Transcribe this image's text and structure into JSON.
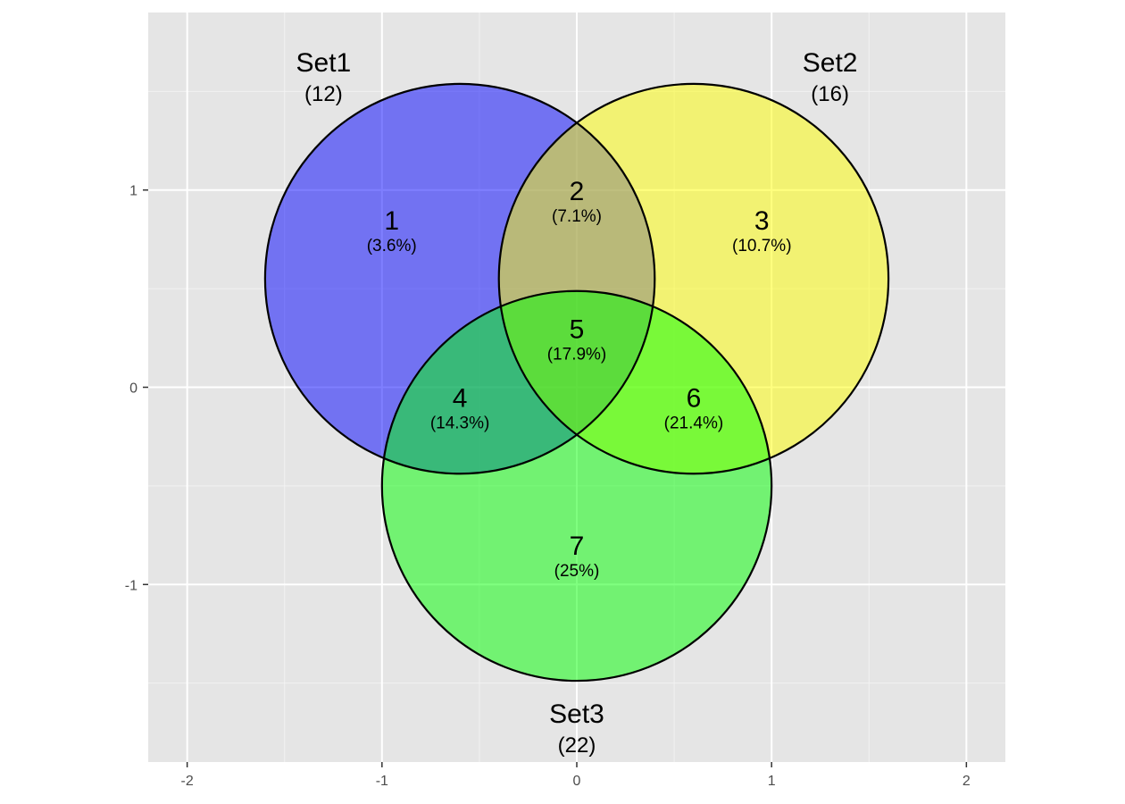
{
  "chart_data": {
    "type": "venn",
    "xlim": [
      -2.2,
      2.2
    ],
    "ylim": [
      -1.9,
      1.9
    ],
    "x_ticks": [
      -2,
      -1,
      0,
      1,
      2
    ],
    "y_ticks": [
      -1,
      0,
      1
    ],
    "grid": true,
    "panel_background": "#e5e5e5",
    "sets": [
      {
        "name": "Set1",
        "count": "(12)",
        "center": [
          -0.6,
          0.55
        ],
        "radius": 1.0,
        "color": "#0000ff",
        "label_pos": [
          -1.3,
          1.6
        ]
      },
      {
        "name": "Set2",
        "count": "(16)",
        "center": [
          0.6,
          0.55
        ],
        "radius": 1.0,
        "color": "#ffff00",
        "label_pos": [
          1.3,
          1.6
        ]
      },
      {
        "name": "Set3",
        "count": "(22)",
        "center": [
          0.0,
          -0.5
        ],
        "radius": 1.0,
        "color": "#00ff00",
        "label_pos": [
          0.0,
          -1.7
        ]
      }
    ],
    "regions": [
      {
        "count": "1",
        "percent": "(3.6%)",
        "pos": [
          -0.95,
          0.8
        ]
      },
      {
        "count": "2",
        "percent": "(7.1%)",
        "pos": [
          0.0,
          0.95
        ]
      },
      {
        "count": "3",
        "percent": "(10.7%)",
        "pos": [
          0.95,
          0.8
        ]
      },
      {
        "count": "4",
        "percent": "(14.3%)",
        "pos": [
          -0.6,
          -0.1
        ]
      },
      {
        "count": "5",
        "percent": "(17.9%)",
        "pos": [
          0.0,
          0.25
        ]
      },
      {
        "count": "6",
        "percent": "(21.4%)",
        "pos": [
          0.6,
          -0.1
        ]
      },
      {
        "count": "7",
        "percent": "(25%)",
        "pos": [
          0.0,
          -0.85
        ]
      }
    ]
  }
}
